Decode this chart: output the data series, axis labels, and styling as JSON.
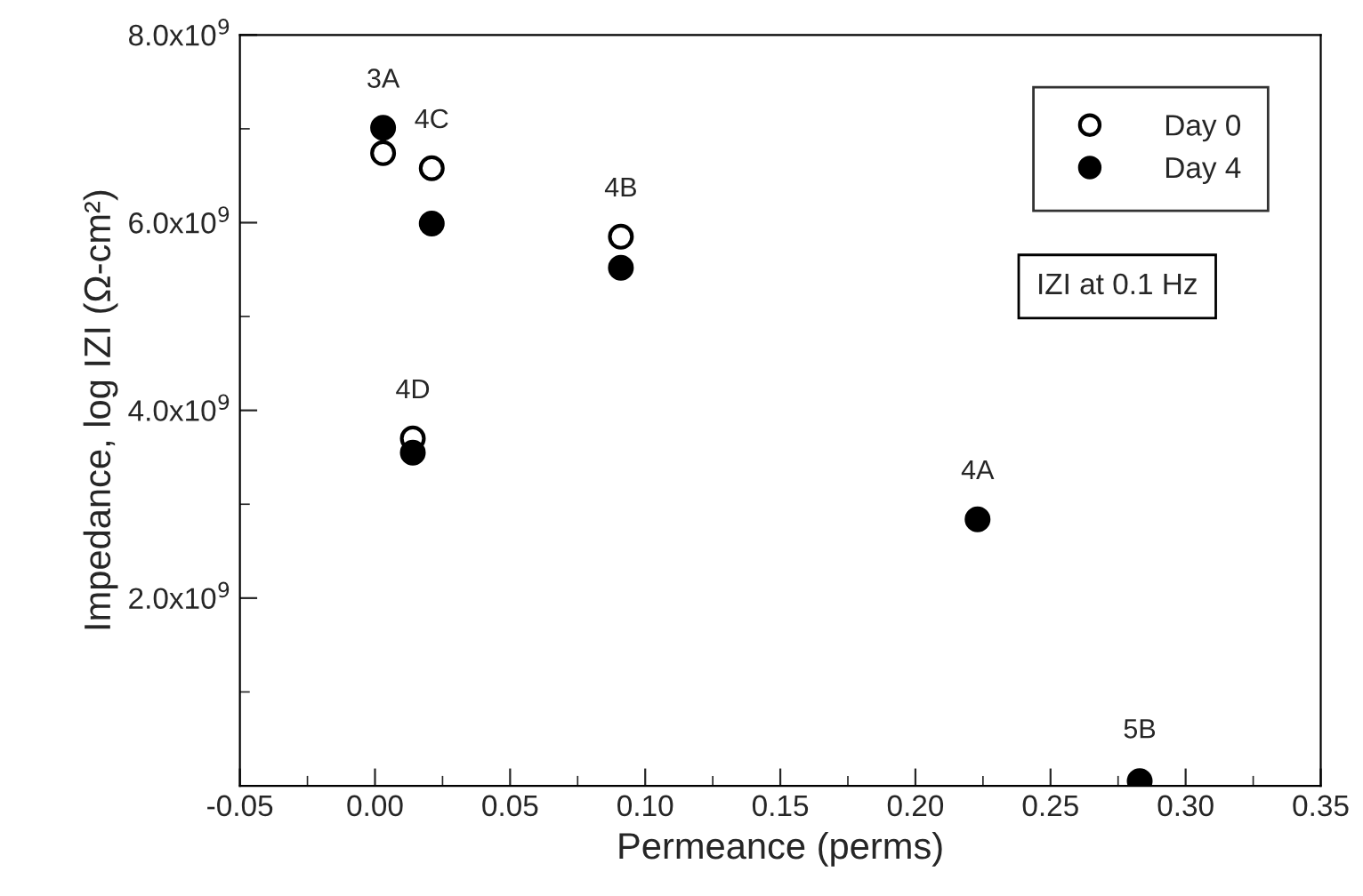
{
  "chart_data": {
    "type": "scatter",
    "xlabel": "Permeance (perms)",
    "ylabel": "Impedance, log IZI (Ω-cm²)",
    "x": [
      0.003,
      0.021,
      0.091,
      0.014,
      0.223,
      0.283
    ],
    "series": [
      {
        "name": "Day 0",
        "color": "#ffffff",
        "values": [
          6740000000.0,
          6580000000.0,
          5850000000.0,
          3700000000.0,
          null,
          null
        ]
      },
      {
        "name": "Day 4",
        "color": "#000000",
        "values": [
          7010000000.0,
          5990000000.0,
          5520000000.0,
          3550000000.0,
          2840000000.0,
          50000000.0
        ]
      }
    ],
    "xlim": [
      -0.05,
      0.35
    ],
    "xticks": [
      {
        "value": -0.05,
        "label": "-0.05"
      },
      {
        "value": 0.0,
        "label": "0.00"
      },
      {
        "value": 0.05,
        "label": "0.05"
      },
      {
        "value": 0.1,
        "label": "0.10"
      },
      {
        "value": 0.15,
        "label": "0.15"
      },
      {
        "value": 0.2,
        "label": "0.20"
      },
      {
        "value": 0.25,
        "label": "0.25"
      },
      {
        "value": 0.3,
        "label": "0.30"
      },
      {
        "value": 0.35,
        "label": "0.35"
      }
    ],
    "ylim": [
      0,
      8000000000.0
    ],
    "yticks": [
      {
        "value": 2000000000.0,
        "label": "2.0x10$^{9}$"
      },
      {
        "value": 4000000000.0,
        "label": "4.0x10$^{9}$"
      },
      {
        "value": 6000000000.0,
        "label": "6.0x10$^{9}$"
      },
      {
        "value": 8000000000.0,
        "label": "8.0x10$^{9}$"
      }
    ],
    "annotations": [
      {
        "text": "3A",
        "x": 0.003,
        "y": 7010000000.0
      },
      {
        "text": "4C",
        "x": 0.021,
        "y": 6580000000.0
      },
      {
        "text": "4B",
        "x": 0.091,
        "y": 5850000000.0
      },
      {
        "text": "4D",
        "x": 0.014,
        "y": 3700000000.0
      },
      {
        "text": "4A",
        "x": 0.223,
        "y": 2840000000.0
      },
      {
        "text": "5B",
        "x": 0.283,
        "y": 80000000.0
      },
      "IZI at 0.1 Hz"
    ],
    "marker": "circle",
    "legend": "top right",
    "grid": false
  }
}
